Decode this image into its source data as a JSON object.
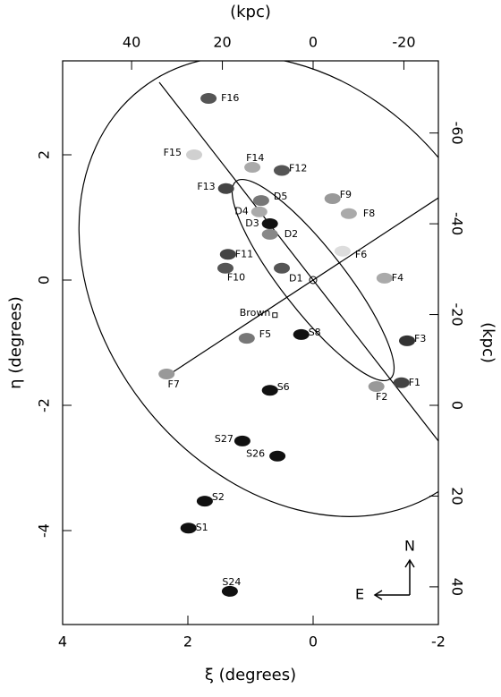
{
  "chart_data": {
    "type": "scatter",
    "xlabel": "ξ (degrees)",
    "ylabel": "η (degrees)",
    "x2label": "(kpc)",
    "y2label": "(kpc)",
    "xlim": [
      4,
      -2
    ],
    "ylim": [
      -5.5,
      3.5
    ],
    "xticks": [
      4,
      2,
      0,
      -2
    ],
    "yticks": [
      -4,
      -2,
      0,
      2
    ],
    "x2lim": [
      55.2,
      -27.6
    ],
    "y2lim": [
      48.3,
      -75.9
    ],
    "x2ticks": [
      40,
      20,
      0,
      -20
    ],
    "y2ticks": [
      40,
      20,
      0,
      -20,
      -40,
      -60
    ],
    "labels": [
      "F16",
      "F15",
      "F14",
      "F12",
      "F13",
      "D5",
      "D4",
      "D3",
      "D2",
      "F9",
      "F8",
      "F6",
      "F4",
      "F11",
      "F10",
      "D1",
      "F5",
      "S8",
      "F3",
      "F7",
      "S6",
      "F2",
      "F1",
      "S27",
      "S26",
      "S2",
      "S1",
      "S24"
    ],
    "x": [
      1.67,
      1.9,
      0.97,
      0.5,
      1.39,
      0.83,
      0.86,
      0.69,
      0.69,
      -0.31,
      -0.57,
      -0.47,
      -1.14,
      1.36,
      1.4,
      0.5,
      1.06,
      0.19,
      -1.5,
      2.34,
      0.69,
      -1.01,
      -1.41,
      1.13,
      0.57,
      1.73,
      1.99,
      1.33
    ],
    "values": [
      2.9,
      2.0,
      1.8,
      1.75,
      1.46,
      1.27,
      1.09,
      0.9,
      0.73,
      1.3,
      1.06,
      0.46,
      0.03,
      0.41,
      0.19,
      0.19,
      -0.93,
      -0.87,
      -0.97,
      -1.5,
      -1.76,
      -1.7,
      -1.64,
      -2.57,
      -2.81,
      -3.53,
      -3.96,
      -4.97
    ],
    "colors": [
      "#555555",
      "#d0d0d0",
      "#aaaaaa",
      "#555555",
      "#444444",
      "#777777",
      "#aaaaaa",
      "#111111",
      "#888888",
      "#999999",
      "#aaaaaa",
      "#dddddd",
      "#aaaaaa",
      "#444444",
      "#555555",
      "#555555",
      "#777777",
      "#111111",
      "#333333",
      "#999999",
      "#111111",
      "#999999",
      "#444444",
      "#111111",
      "#111111",
      "#111111",
      "#111111",
      "#111111"
    ],
    "center": {
      "x": 0,
      "y": 0
    },
    "brown": {
      "label": "Brown",
      "x": 0.61,
      "y": -0.56
    },
    "compass": {
      "north": "N",
      "east": "E"
    }
  }
}
